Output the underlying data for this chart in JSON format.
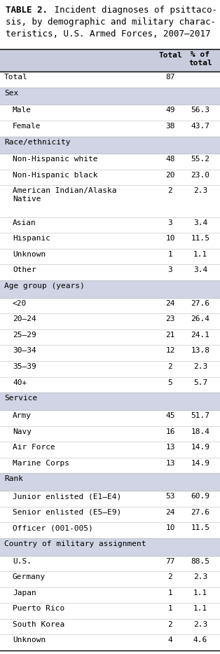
{
  "title_bold": "TABLE 2.",
  "title_lines": [
    [
      "bold",
      "TABLE 2.",
      "normal",
      " Incident diagnoses of psittaco-"
    ],
    [
      "normal",
      "sis, by demographic and military charac-"
    ],
    [
      "normal",
      "teristics, U.S. Armed Forces, 2007–2017"
    ]
  ],
  "col_headers": [
    "Total",
    "% of\ntotal"
  ],
  "header_bg": "#c8ccdc",
  "section_bg": "#d0d4e4",
  "rows": [
    {
      "label": "Total",
      "total": "87",
      "pct": "",
      "indent": 0,
      "is_section": false,
      "is_total": true
    },
    {
      "label": "Sex",
      "total": "",
      "pct": "",
      "indent": 0,
      "is_section": true,
      "is_total": false
    },
    {
      "label": "Male",
      "total": "49",
      "pct": "56.3",
      "indent": 1,
      "is_section": false,
      "is_total": false
    },
    {
      "label": "Female",
      "total": "38",
      "pct": "43.7",
      "indent": 1,
      "is_section": false,
      "is_total": false
    },
    {
      "label": "Race/ethnicity",
      "total": "",
      "pct": "",
      "indent": 0,
      "is_section": true,
      "is_total": false
    },
    {
      "label": "Non-Hispanic white",
      "total": "48",
      "pct": "55.2",
      "indent": 1,
      "is_section": false,
      "is_total": false
    },
    {
      "label": "Non-Hispanic black",
      "total": "20",
      "pct": "23.0",
      "indent": 1,
      "is_section": false,
      "is_total": false
    },
    {
      "label": "American Indian/Alaska\nNative",
      "total": "2",
      "pct": "2.3",
      "indent": 1,
      "is_section": false,
      "is_total": false
    },
    {
      "label": "Asian",
      "total": "3",
      "pct": "3.4",
      "indent": 1,
      "is_section": false,
      "is_total": false
    },
    {
      "label": "Hispanic",
      "total": "10",
      "pct": "11.5",
      "indent": 1,
      "is_section": false,
      "is_total": false
    },
    {
      "label": "Unknown",
      "total": "1",
      "pct": "1.1",
      "indent": 1,
      "is_section": false,
      "is_total": false
    },
    {
      "label": "Other",
      "total": "3",
      "pct": "3.4",
      "indent": 1,
      "is_section": false,
      "is_total": false
    },
    {
      "label": "Age group (years)",
      "total": "",
      "pct": "",
      "indent": 0,
      "is_section": true,
      "is_total": false
    },
    {
      "label": "<20",
      "total": "24",
      "pct": "27.6",
      "indent": 1,
      "is_section": false,
      "is_total": false
    },
    {
      "label": "20–24",
      "total": "23",
      "pct": "26.4",
      "indent": 1,
      "is_section": false,
      "is_total": false
    },
    {
      "label": "25–29",
      "total": "21",
      "pct": "24.1",
      "indent": 1,
      "is_section": false,
      "is_total": false
    },
    {
      "label": "30–34",
      "total": "12",
      "pct": "13.8",
      "indent": 1,
      "is_section": false,
      "is_total": false
    },
    {
      "label": "35–39",
      "total": "2",
      "pct": "2.3",
      "indent": 1,
      "is_section": false,
      "is_total": false
    },
    {
      "label": "40+",
      "total": "5",
      "pct": "5.7",
      "indent": 1,
      "is_section": false,
      "is_total": false
    },
    {
      "label": "Service",
      "total": "",
      "pct": "",
      "indent": 0,
      "is_section": true,
      "is_total": false
    },
    {
      "label": "Army",
      "total": "45",
      "pct": "51.7",
      "indent": 1,
      "is_section": false,
      "is_total": false
    },
    {
      "label": "Navy",
      "total": "16",
      "pct": "18.4",
      "indent": 1,
      "is_section": false,
      "is_total": false
    },
    {
      "label": "Air Force",
      "total": "13",
      "pct": "14.9",
      "indent": 1,
      "is_section": false,
      "is_total": false
    },
    {
      "label": "Marine Corps",
      "total": "13",
      "pct": "14.9",
      "indent": 1,
      "is_section": false,
      "is_total": false
    },
    {
      "label": "Rank",
      "total": "",
      "pct": "",
      "indent": 0,
      "is_section": true,
      "is_total": false
    },
    {
      "label": "Junior enlisted (E1–E4)",
      "total": "53",
      "pct": "60.9",
      "indent": 1,
      "is_section": false,
      "is_total": false
    },
    {
      "label": "Senior enlisted (E5–E9)",
      "total": "24",
      "pct": "27.6",
      "indent": 1,
      "is_section": false,
      "is_total": false
    },
    {
      "label": "Officer (001-005)",
      "total": "10",
      "pct": "11.5",
      "indent": 1,
      "is_section": false,
      "is_total": false
    },
    {
      "label": "Country of military assignment",
      "total": "",
      "pct": "",
      "indent": 0,
      "is_section": true,
      "is_total": false
    },
    {
      "label": "U.S.",
      "total": "77",
      "pct": "88.5",
      "indent": 1,
      "is_section": false,
      "is_total": false
    },
    {
      "label": "Germany",
      "total": "2",
      "pct": "2.3",
      "indent": 1,
      "is_section": false,
      "is_total": false
    },
    {
      "label": "Japan",
      "total": "1",
      "pct": "1.1",
      "indent": 1,
      "is_section": false,
      "is_total": false
    },
    {
      "label": "Puerto Rico",
      "total": "1",
      "pct": "1.1",
      "indent": 1,
      "is_section": false,
      "is_total": false
    },
    {
      "label": "South Korea",
      "total": "2",
      "pct": "2.3",
      "indent": 1,
      "is_section": false,
      "is_total": false
    },
    {
      "label": "Unknown",
      "total": "4",
      "pct": "4.6",
      "indent": 1,
      "is_section": false,
      "is_total": false
    }
  ],
  "font_size": 8.0,
  "title_font_size": 9.0
}
